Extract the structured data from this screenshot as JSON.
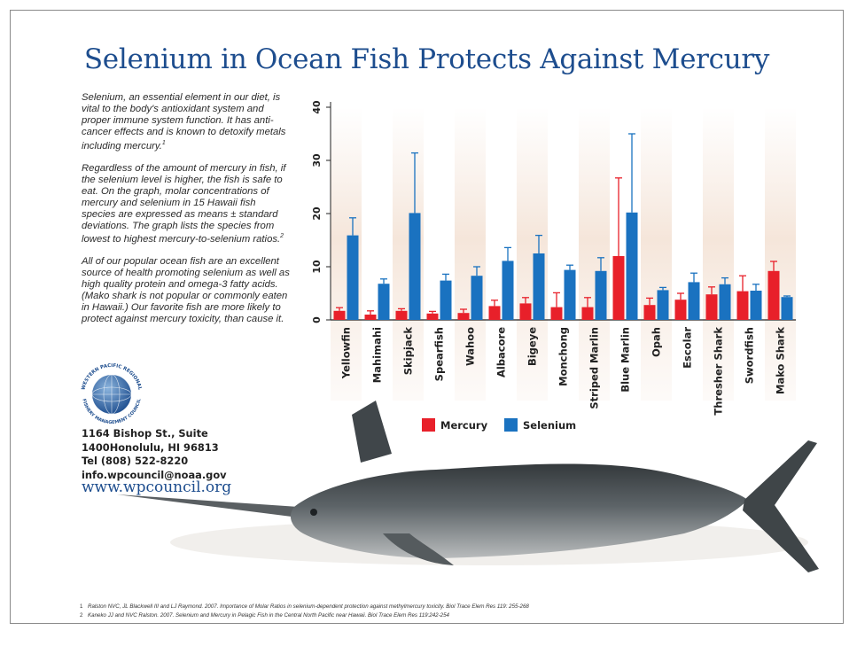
{
  "title": "Selenium in Ocean Fish Protects Against Mercury",
  "intro": {
    "p1": "Selenium, an essential element in our diet, is vital to the body's antioxidant system and proper immune system function. It has anti-cancer effects and is known to detoxify metals including mercury.",
    "p1_ref": "1",
    "p2": "Regardless of the amount of mercury in fish, if the selenium level is higher, the fish is safe to eat. On the graph, molar concentrations of mercury and selenium in 15 Hawaii fish species are expressed as means ± standard deviations. The graph lists the species from lowest to highest mercury-to-selenium ratios.",
    "p2_ref": "2",
    "p3": "All of our popular ocean fish are an excellent source of health promoting selenium as well as high quality protein and omega-3 fatty acids. (Mako shark is not popular or commonly eaten in Hawaii.) Our favorite fish are more likely to protect against mercury toxicity, than cause it."
  },
  "logo": {
    "text_top": "WESTERN PACIFIC REGIONAL",
    "text_bottom": "FISHERY MANAGEMENT COUNCIL"
  },
  "contact": {
    "line1": "1164 Bishop St., Suite",
    "line2": "1400Honolulu, HI 96813",
    "line3": "Tel (808) 522-8220",
    "line4": "info.wpcouncil@noaa.gov",
    "website": "www.wpcouncil.org"
  },
  "footnotes": [
    {
      "mark": "1",
      "text": "Ralston NVC, JL Blackwell III and LJ Raymond. 2007. Importance of Molar Ratios in selenium-dependent protection against methylmercury toxicity. Biol Trace Elem Res 119: 255-268"
    },
    {
      "mark": "2",
      "text": "Kaneko JJ and NVC Ralston. 2007. Selenium and Mercury in Pelagic Fish in the Central North Pacific near Hawaii. Biol Trace Elem Res 119:242-254"
    }
  ],
  "chart_data": {
    "type": "bar",
    "categories": [
      "Yellowfin",
      "Mahimahi",
      "Skipjack",
      "Spearfish",
      "Wahoo",
      "Albacore",
      "Bigeye",
      "Monchong",
      "Striped Marlin",
      "Blue Marlin",
      "Opah",
      "Escolar",
      "Thresher Shark",
      "Swordfish",
      "Mako Shark"
    ],
    "series": [
      {
        "name": "Mercury",
        "color": "#e8202a",
        "values": [
          1.7,
          1.0,
          1.7,
          1.2,
          1.3,
          2.6,
          3.1,
          2.4,
          2.4,
          12.0,
          2.8,
          3.8,
          4.8,
          5.4,
          9.2
        ],
        "errors": [
          0.6,
          0.7,
          0.4,
          0.4,
          0.7,
          1.1,
          1.1,
          2.7,
          1.8,
          14.7,
          1.3,
          1.2,
          1.4,
          2.9,
          1.8
        ]
      },
      {
        "name": "Selenium",
        "color": "#1a72c0",
        "values": [
          15.9,
          6.8,
          20.1,
          7.4,
          8.3,
          11.1,
          12.5,
          9.4,
          9.2,
          20.2,
          5.6,
          7.1,
          6.7,
          5.5,
          4.3
        ],
        "errors": [
          3.3,
          0.9,
          11.3,
          1.2,
          1.7,
          2.5,
          3.4,
          0.9,
          2.5,
          14.8,
          0.5,
          1.7,
          1.2,
          1.2,
          0.2
        ]
      }
    ],
    "yticks": [
      0,
      10,
      20,
      30,
      40
    ],
    "ylim": [
      0,
      40
    ],
    "legend_position": "bottom"
  }
}
